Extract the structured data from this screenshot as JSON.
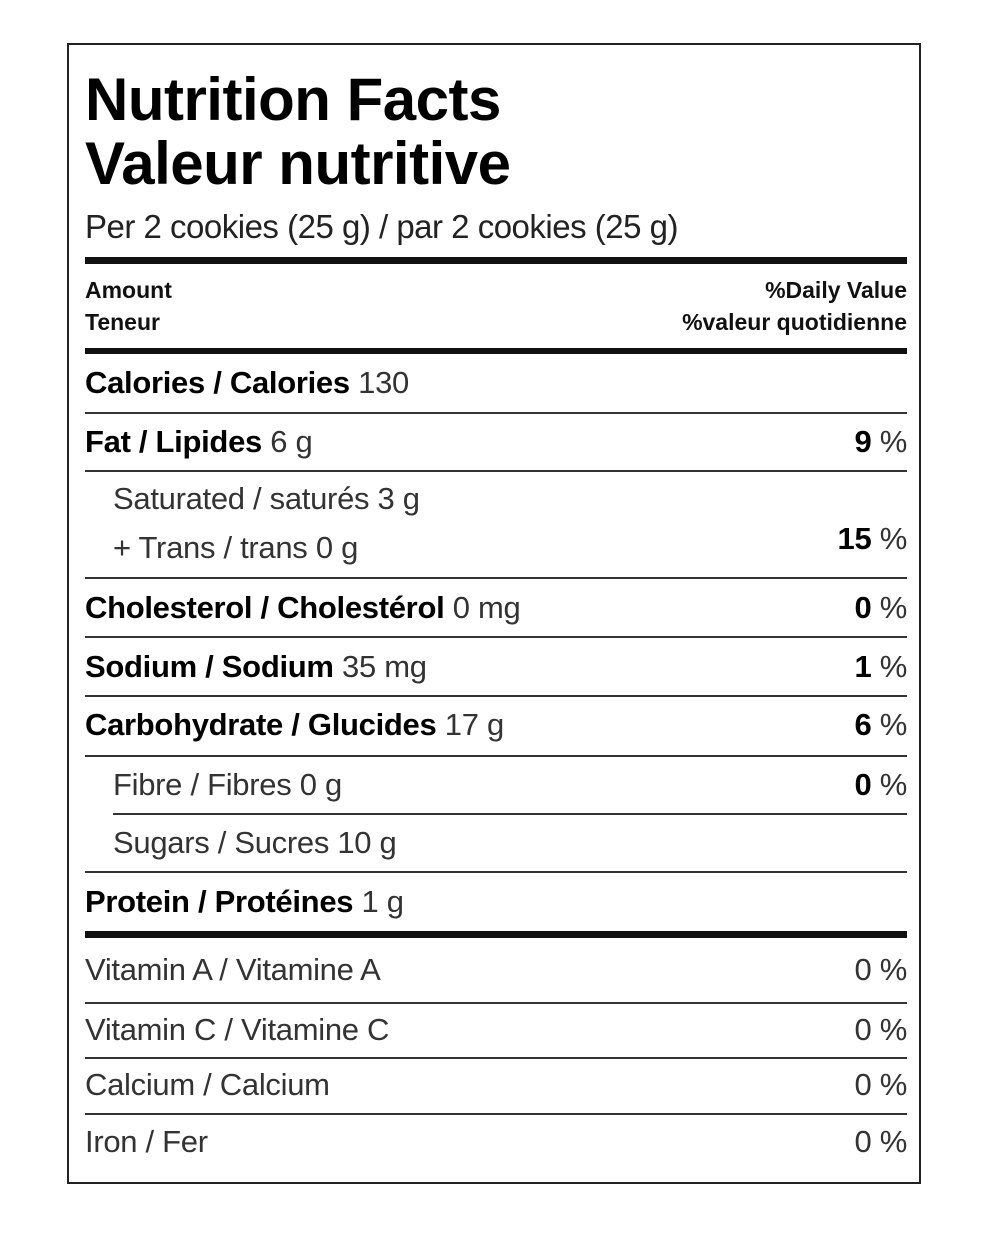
{
  "title_en": "Nutrition Facts",
  "title_fr": "Valeur nutritive",
  "serving": "Per 2 cookies (25 g) / par 2 cookies (25 g)",
  "header": {
    "amount_en": "Amount",
    "amount_fr": "Teneur",
    "dv_en": "%Daily Value",
    "dv_fr": "%valeur quotidienne"
  },
  "calories": {
    "label": "Calories / Calories",
    "value": "130"
  },
  "fat": {
    "label": "Fat / Lipides",
    "value": "6 g",
    "pct": "9",
    "unit": "%"
  },
  "saturated": {
    "label": "Saturated / saturés 3 g"
  },
  "trans": {
    "label": "+ Trans / trans 0 g",
    "pct": "15",
    "unit": "%"
  },
  "cholesterol": {
    "label": "Cholesterol / Cholestérol",
    "value": "0 mg",
    "pct": "0",
    "unit": "%"
  },
  "sodium": {
    "label": "Sodium / Sodium",
    "value": "35 mg",
    "pct": "1",
    "unit": "%"
  },
  "carbohydrate": {
    "label": "Carbohydrate / Glucides",
    "value": "17 g",
    "pct": "6",
    "unit": "%"
  },
  "fibre": {
    "label": "Fibre / Fibres 0 g",
    "pct": "0",
    "unit": "%"
  },
  "sugars": {
    "label": "Sugars / Sucres 10 g"
  },
  "protein": {
    "label": "Protein / Protéines",
    "value": "1 g"
  },
  "vitamins": [
    {
      "label": "Vitamin A / Vitamine A",
      "pct": "0 %"
    },
    {
      "label": "Vitamin C / Vitamine C",
      "pct": "0 %"
    },
    {
      "label": "Calcium / Calcium",
      "pct": "0 %"
    },
    {
      "label": "Iron / Fer",
      "pct": "0 %"
    }
  ]
}
